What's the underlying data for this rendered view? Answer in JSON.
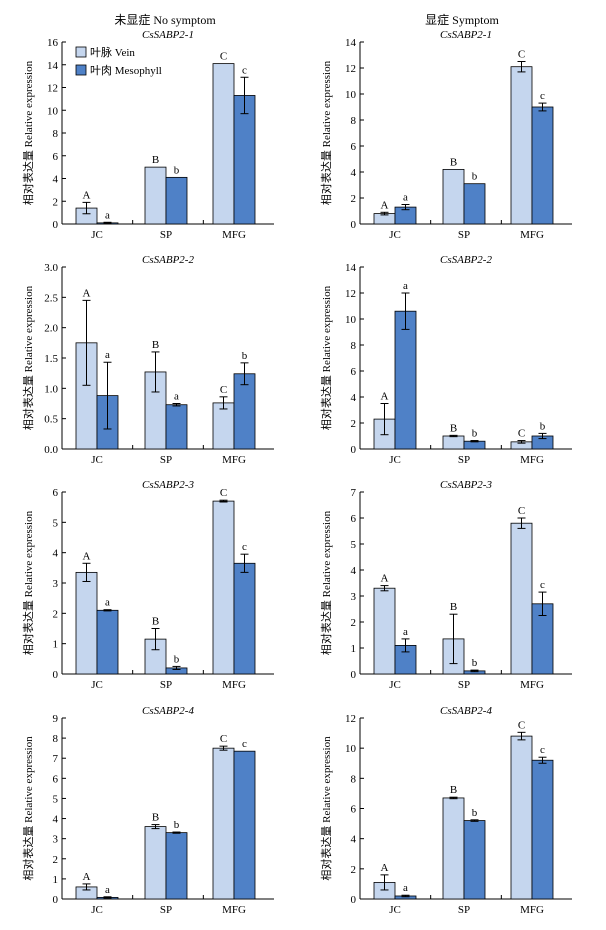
{
  "figure": {
    "column_headers": [
      "未显症 No symptom",
      "显症 Symptom"
    ]
  },
  "legend": {
    "entries": [
      {
        "name": "叶脉 Vein",
        "color": "#c5d6ee"
      },
      {
        "name": "叶肉 Mesophyll",
        "color": "#4f81c7"
      }
    ]
  },
  "colors": {
    "vein": "#c5d6ee",
    "mesophyll": "#4f81c7",
    "axis": "#000000"
  },
  "chart_data": [
    {
      "type": "bar",
      "title": "CsSABP2-1",
      "column": "No symptom",
      "ylabel": "相对表达量 Relative expression",
      "categories": [
        "JC",
        "SP",
        "MFG"
      ],
      "ylim": [
        0,
        16
      ],
      "yticks": [
        0,
        2,
        4,
        6,
        8,
        10,
        12,
        14,
        16
      ],
      "tick_decimals": 0,
      "series": [
        {
          "name": "叶脉 Vein",
          "values": [
            1.4,
            5.0,
            14.1
          ],
          "errors": [
            0.5,
            0.0,
            0.0
          ],
          "labels": [
            "A",
            "B",
            "C"
          ]
        },
        {
          "name": "叶肉 Mesophyll",
          "values": [
            0.1,
            4.1,
            11.3
          ],
          "errors": [
            0.05,
            0.0,
            1.6
          ],
          "labels": [
            "a",
            "b",
            "c"
          ]
        }
      ]
    },
    {
      "type": "bar",
      "title": "CsSABP2-1",
      "column": "Symptom",
      "ylabel": "相对表达量 Relative expression",
      "categories": [
        "JC",
        "SP",
        "MFG"
      ],
      "ylim": [
        0,
        14
      ],
      "yticks": [
        0,
        2,
        4,
        6,
        8,
        10,
        12,
        14
      ],
      "tick_decimals": 0,
      "series": [
        {
          "name": "叶脉 Vein",
          "values": [
            0.8,
            4.2,
            12.1
          ],
          "errors": [
            0.1,
            0.0,
            0.4
          ],
          "labels": [
            "A",
            "B",
            "C"
          ]
        },
        {
          "name": "叶肉 Mesophyll",
          "values": [
            1.3,
            3.1,
            9.0
          ],
          "errors": [
            0.2,
            0.0,
            0.3
          ],
          "labels": [
            "a",
            "b",
            "c"
          ]
        }
      ]
    },
    {
      "type": "bar",
      "title": "CsSABP2-2",
      "column": "No symptom",
      "ylabel": "相对表达量 Relative expression",
      "categories": [
        "JC",
        "SP",
        "MFG"
      ],
      "ylim": [
        0,
        3.0
      ],
      "yticks": [
        0,
        0.5,
        1.0,
        1.5,
        2.0,
        2.5,
        3.0
      ],
      "tick_decimals": 1,
      "series": [
        {
          "name": "叶脉 Vein",
          "values": [
            1.75,
            1.27,
            0.76
          ],
          "errors": [
            0.7,
            0.33,
            0.1
          ],
          "labels": [
            "A",
            "B",
            "C"
          ]
        },
        {
          "name": "叶肉 Mesophyll",
          "values": [
            0.88,
            0.73,
            1.24
          ],
          "errors": [
            0.55,
            0.02,
            0.18
          ],
          "labels": [
            "a",
            "a",
            "b"
          ]
        }
      ]
    },
    {
      "type": "bar",
      "title": "CsSABP2-2",
      "column": "Symptom",
      "ylabel": "相对表达量 Relative expression",
      "categories": [
        "JC",
        "SP",
        "MFG"
      ],
      "ylim": [
        0,
        14
      ],
      "yticks": [
        0,
        2,
        4,
        6,
        8,
        10,
        12,
        14
      ],
      "tick_decimals": 0,
      "series": [
        {
          "name": "叶脉 Vein",
          "values": [
            2.3,
            1.0,
            0.55
          ],
          "errors": [
            1.2,
            0.05,
            0.1
          ],
          "labels": [
            "A",
            "B",
            "C"
          ]
        },
        {
          "name": "叶肉 Mesophyll",
          "values": [
            10.6,
            0.6,
            1.0
          ],
          "errors": [
            1.4,
            0.05,
            0.2
          ],
          "labels": [
            "a",
            "b",
            "b"
          ]
        }
      ]
    },
    {
      "type": "bar",
      "title": "CsSABP2-3",
      "column": "No symptom",
      "ylabel": "相对表达量 Relative expression",
      "categories": [
        "JC",
        "SP",
        "MFG"
      ],
      "ylim": [
        0,
        6
      ],
      "yticks": [
        0,
        1,
        2,
        3,
        4,
        5,
        6
      ],
      "tick_decimals": 0,
      "series": [
        {
          "name": "叶脉 Vein",
          "values": [
            3.35,
            1.15,
            5.7
          ],
          "errors": [
            0.3,
            0.35,
            0.03
          ],
          "labels": [
            "A",
            "B",
            "C"
          ]
        },
        {
          "name": "叶肉 Mesophyll",
          "values": [
            2.1,
            0.2,
            3.65
          ],
          "errors": [
            0.02,
            0.05,
            0.3
          ],
          "labels": [
            "a",
            "b",
            "c"
          ]
        }
      ]
    },
    {
      "type": "bar",
      "title": "CsSABP2-3",
      "column": "Symptom",
      "ylabel": "相对表达量 Relative expression",
      "categories": [
        "JC",
        "SP",
        "MFG"
      ],
      "ylim": [
        0,
        7
      ],
      "yticks": [
        0,
        1,
        2,
        3,
        4,
        5,
        6,
        7
      ],
      "tick_decimals": 0,
      "series": [
        {
          "name": "叶脉 Vein",
          "values": [
            3.3,
            1.35,
            5.8
          ],
          "errors": [
            0.1,
            0.95,
            0.2
          ],
          "labels": [
            "A",
            "B",
            "C"
          ]
        },
        {
          "name": "叶肉 Mesophyll",
          "values": [
            1.1,
            0.12,
            2.7
          ],
          "errors": [
            0.25,
            0.03,
            0.45
          ],
          "labels": [
            "a",
            "b",
            "c"
          ]
        }
      ]
    },
    {
      "type": "bar",
      "title": "CsSABP2-4",
      "column": "No symptom",
      "ylabel": "相对表达量 Relative expression",
      "categories": [
        "JC",
        "SP",
        "MFG"
      ],
      "ylim": [
        0,
        9
      ],
      "yticks": [
        0,
        1,
        2,
        3,
        4,
        5,
        6,
        7,
        8,
        9
      ],
      "tick_decimals": 0,
      "series": [
        {
          "name": "叶脉 Vein",
          "values": [
            0.6,
            3.6,
            7.5
          ],
          "errors": [
            0.15,
            0.1,
            0.1
          ],
          "labels": [
            "A",
            "B",
            "C"
          ]
        },
        {
          "name": "叶肉 Mesophyll",
          "values": [
            0.08,
            3.3,
            7.35
          ],
          "errors": [
            0.03,
            0.03,
            0.0
          ],
          "labels": [
            "a",
            "b",
            "c"
          ]
        }
      ]
    },
    {
      "type": "bar",
      "title": "CsSABP2-4",
      "column": "Symptom",
      "ylabel": "相对表达量 Relative expression",
      "categories": [
        "JC",
        "SP",
        "MFG"
      ],
      "ylim": [
        0,
        12
      ],
      "yticks": [
        0,
        2,
        4,
        6,
        8,
        10,
        12
      ],
      "tick_decimals": 0,
      "series": [
        {
          "name": "叶脉 Vein",
          "values": [
            1.1,
            6.7,
            10.8
          ],
          "errors": [
            0.5,
            0.05,
            0.25
          ],
          "labels": [
            "A",
            "B",
            "C"
          ]
        },
        {
          "name": "叶肉 Mesophyll",
          "values": [
            0.2,
            5.2,
            9.2
          ],
          "errors": [
            0.05,
            0.05,
            0.2
          ],
          "labels": [
            "a",
            "b",
            "c"
          ]
        }
      ]
    }
  ]
}
